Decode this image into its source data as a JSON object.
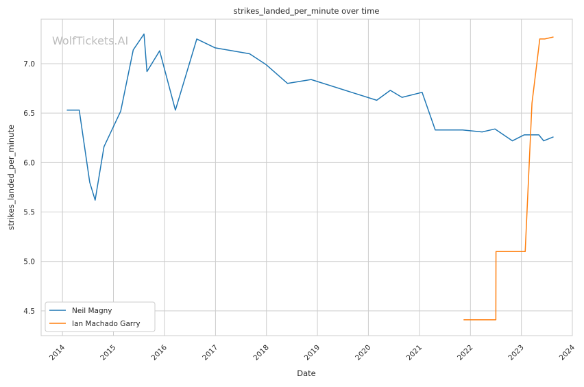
{
  "watermark": "WolfTickets.AI",
  "chart_data": {
    "type": "line",
    "title": "strikes_landed_per_minute over time",
    "xlabel": "Date",
    "ylabel": "strikes_landed_per_minute",
    "xlim": [
      "2013-08-01",
      "2024-01-01"
    ],
    "ylim": [
      4.25,
      7.45
    ],
    "x_ticks": [
      "2014",
      "2015",
      "2016",
      "2017",
      "2018",
      "2019",
      "2020",
      "2021",
      "2022",
      "2023",
      "2024"
    ],
    "y_ticks": [
      "4.5",
      "5.0",
      "5.5",
      "6.0",
      "6.5",
      "7.0"
    ],
    "grid": true,
    "legend_position": "lower-left",
    "series": [
      {
        "name": "Neil Magny",
        "color": "#1f77b4",
        "points": [
          [
            "2014-02-01",
            6.53
          ],
          [
            "2014-05-01",
            6.53
          ],
          [
            "2014-07-15",
            5.8
          ],
          [
            "2014-08-23",
            5.62
          ],
          [
            "2014-10-25",
            6.16
          ],
          [
            "2015-02-22",
            6.52
          ],
          [
            "2015-05-23",
            7.14
          ],
          [
            "2015-08-08",
            7.3
          ],
          [
            "2015-08-29",
            6.92
          ],
          [
            "2015-11-28",
            7.13
          ],
          [
            "2016-03-20",
            6.53
          ],
          [
            "2016-08-20",
            7.25
          ],
          [
            "2016-12-30",
            7.16
          ],
          [
            "2017-09-02",
            7.1
          ],
          [
            "2017-12-30",
            6.99
          ],
          [
            "2018-06-01",
            6.8
          ],
          [
            "2018-11-17",
            6.84
          ],
          [
            "2020-03-01",
            6.63
          ],
          [
            "2020-06-06",
            6.73
          ],
          [
            "2020-08-29",
            6.66
          ],
          [
            "2021-01-20",
            6.71
          ],
          [
            "2021-04-24",
            6.33
          ],
          [
            "2021-11-06",
            6.33
          ],
          [
            "2022-03-26",
            6.31
          ],
          [
            "2022-06-25",
            6.34
          ],
          [
            "2022-10-29",
            6.22
          ],
          [
            "2023-01-21",
            6.28
          ],
          [
            "2023-05-06",
            6.28
          ],
          [
            "2023-06-10",
            6.22
          ],
          [
            "2023-08-19",
            6.26
          ]
        ]
      },
      {
        "name": "Ian Machado Garry",
        "color": "#ff7f0e",
        "points": [
          [
            "2021-11-13",
            4.41
          ],
          [
            "2022-07-02",
            4.41
          ],
          [
            "2022-07-03",
            5.1
          ],
          [
            "2023-01-28",
            5.1
          ],
          [
            "2023-03-18",
            6.6
          ],
          [
            "2023-05-13",
            7.25
          ],
          [
            "2023-06-17",
            7.25
          ],
          [
            "2023-08-19",
            7.27
          ]
        ]
      }
    ]
  }
}
